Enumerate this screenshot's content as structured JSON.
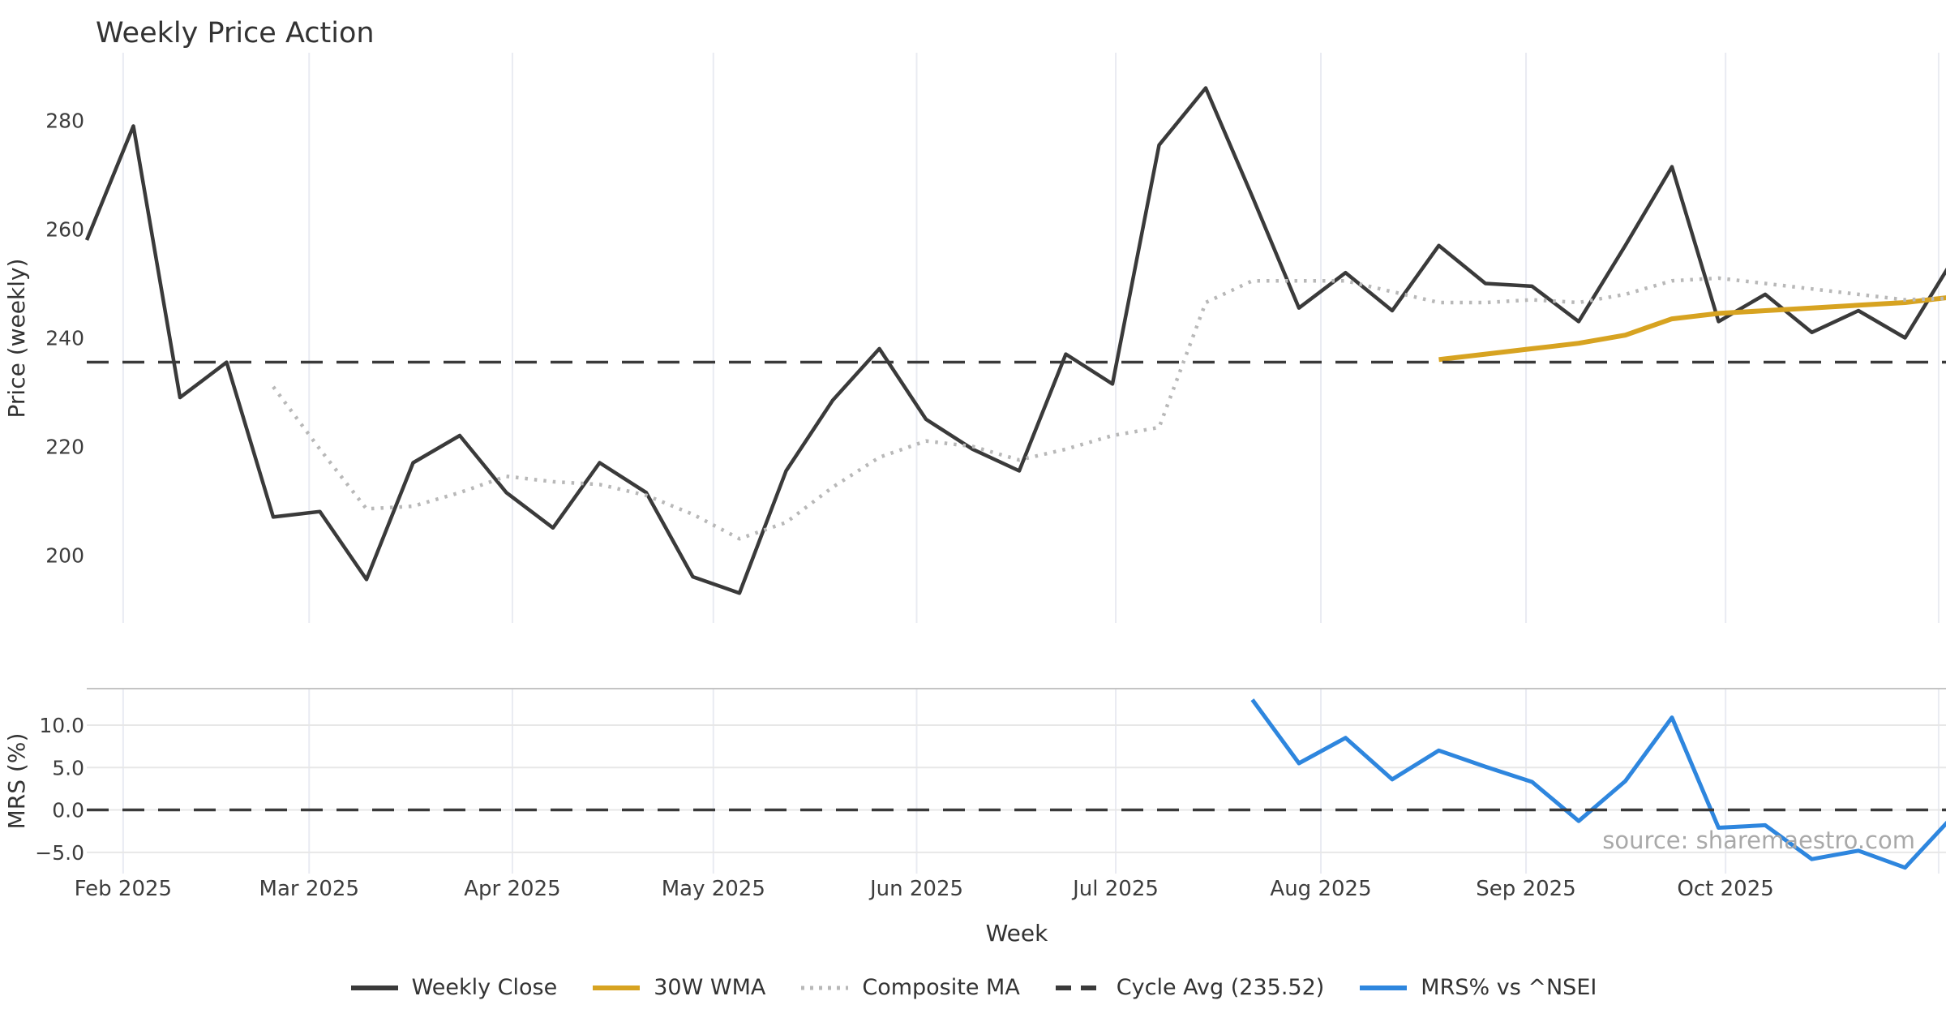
{
  "title": "Weekly Price Action",
  "watermark": "source: sharemaestro.com",
  "x_axis": {
    "label": "Week"
  },
  "price_axis": {
    "label": "Price (weekly)"
  },
  "mrs_axis": {
    "label": "MRS (%)"
  },
  "legend": [
    {
      "label": "Weekly Close",
      "color": "#3a3a3a",
      "style": "solid"
    },
    {
      "label": "30W WMA",
      "color": "#d7a321",
      "style": "solid"
    },
    {
      "label": "Composite MA",
      "color": "#b8b8b8",
      "style": "dotted"
    },
    {
      "label": "Cycle Avg (235.52)",
      "color": "#3a3a3a",
      "style": "dashed"
    },
    {
      "label": "MRS% vs ^NSEI",
      "color": "#2e86de",
      "style": "solid"
    }
  ],
  "chart_data": [
    {
      "type": "line",
      "panel": "price",
      "title": "Weekly Price Action",
      "xlabel": "Week",
      "ylabel": "Price (weekly)",
      "ylim": [
        187.5,
        292.5
      ],
      "yticks": [
        280,
        260,
        240,
        220,
        200
      ],
      "grid": "vertical-months",
      "x_unit": "week_index_from_2025-01-27",
      "xlim": [
        0,
        39.9
      ],
      "month_gridlines": [
        {
          "label": "Feb 2025",
          "week": 0.78
        },
        {
          "label": "Mar 2025",
          "week": 4.77
        },
        {
          "label": "Apr 2025",
          "week": 9.13
        },
        {
          "label": "May 2025",
          "week": 13.44
        },
        {
          "label": "Jun 2025",
          "week": 17.8
        },
        {
          "label": "Jul 2025",
          "week": 22.07
        },
        {
          "label": "Aug 2025",
          "week": 26.47
        },
        {
          "label": "Sep 2025",
          "week": 30.87
        },
        {
          "label": "Oct 2025",
          "week": 35.15
        },
        {
          "label": "",
          "week": 39.72
        }
      ],
      "series": [
        {
          "name": "Weekly Close",
          "color": "#3a3a3a",
          "style": "solid",
          "width": 4.5,
          "start_week": 0,
          "values": [
            258,
            279,
            229,
            235.5,
            207,
            208,
            195.5,
            217,
            222,
            211.5,
            205,
            217,
            211.5,
            196,
            193,
            215.5,
            228.5,
            238,
            225,
            219.5,
            215.5,
            237,
            231.5,
            275.5,
            286,
            266,
            245.5,
            252,
            245,
            257,
            250,
            249.5,
            243,
            257,
            271.5,
            243,
            248,
            241,
            245,
            240,
            254
          ]
        },
        {
          "name": "30W WMA",
          "color": "#d7a321",
          "style": "solid",
          "width": 6,
          "start_week": 29,
          "values": [
            236,
            237,
            238,
            239,
            240.5,
            243.5,
            244.5,
            245,
            245.5,
            246,
            246.5,
            247.5
          ]
        },
        {
          "name": "Composite MA",
          "color": "#b8b8b8",
          "style": "dotted",
          "width": 4.5,
          "start_week": 4,
          "values": [
            231,
            219.5,
            208.5,
            209,
            211.5,
            214.5,
            213.5,
            213,
            211,
            207.5,
            203,
            206,
            212.5,
            218,
            221,
            220,
            217.5,
            219.5,
            222,
            223.5,
            246.5,
            250.5,
            250.5,
            250.5,
            248.5,
            246.5,
            246.5,
            247,
            246.5,
            248,
            250.5,
            251,
            250,
            249,
            248,
            247,
            247.3
          ]
        },
        {
          "name": "Cycle Avg (235.52)",
          "color": "#3a3a3a",
          "style": "dashed",
          "width": 3.5,
          "const": 235.52
        }
      ]
    },
    {
      "type": "line",
      "panel": "mrs",
      "ylabel": "MRS (%)",
      "ylim": [
        -7.5,
        14.3
      ],
      "yticks": [
        10.0,
        5.0,
        0.0,
        -5.0
      ],
      "ytick_labels": [
        "10.0",
        "5.0",
        "0.0",
        "−5.0"
      ],
      "grid": "horizontal-and-months",
      "series": [
        {
          "name": "MRS% vs ^NSEI",
          "color": "#2e86de",
          "style": "solid",
          "width": 5,
          "start_week": 25,
          "values": [
            13.0,
            5.5,
            8.5,
            3.6,
            7.0,
            5.1,
            3.3,
            -1.3,
            3.4,
            10.9,
            -2.1,
            -1.8,
            -5.8,
            -4.8,
            -6.8,
            -0.9
          ]
        },
        {
          "name": "zero-line",
          "color": "#3a3a3a",
          "style": "dashed",
          "width": 3.5,
          "const": 0.0
        }
      ]
    }
  ]
}
